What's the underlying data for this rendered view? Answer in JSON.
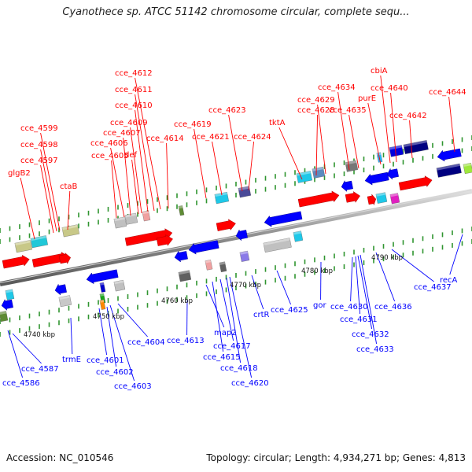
{
  "title": "Cyanothece sp. ATCC 51142 chromosome circular, complete sequ...",
  "footer": {
    "accession": "Accession: NC_010546",
    "topology": "Topology: circular; Length: 4,934,271 bp; Genes: 4,813"
  },
  "colors": {
    "forward": "#ff0000",
    "reverse": "#0000ff",
    "backbone": "#888888",
    "tick": "#1a8a1a"
  },
  "scale_labels": [
    "4740 kbp",
    "4750 kbp",
    "4760 kbp",
    "4770 kbp",
    "4780 kbp",
    "4790 kbp"
  ],
  "genes_top": [
    "glgB2",
    "cce_4597",
    "cce_4598",
    "cce_4599",
    "ctaB",
    "cce_4605",
    "cce_4606",
    "cce_4607",
    "def",
    "cce_4609",
    "cce_4610",
    "cce_4611",
    "cce_4612",
    "cce_4614",
    "cce_4619",
    "cce_4621",
    "cce_4623",
    "cce_4624",
    "tktA",
    "cce_4628",
    "cce_4629",
    "cce_4634",
    "cce_4635",
    "purE",
    "cbiA",
    "cce_4640",
    "cce_4642",
    "cce_4644"
  ],
  "genes_bottom": [
    "cce_4586",
    "cce_4587",
    "trmE",
    "cce_4601",
    "cce_4602",
    "cce_4603",
    "cce_4604",
    "cce_4613",
    "map2",
    "cce_4615",
    "cce_4617",
    "cce_4618",
    "cce_4620",
    "crtR",
    "cce_4625",
    "gor",
    "cce_4630",
    "cce_4631",
    "cce_4632",
    "cce_4633",
    "cce_4636",
    "cce_4637",
    "recA"
  ]
}
